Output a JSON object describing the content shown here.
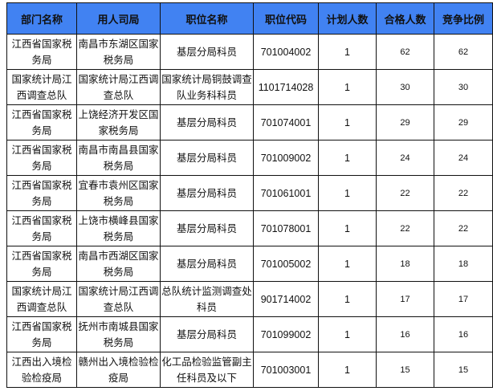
{
  "header_color": "#4182f2",
  "columns": [
    "部门名称",
    "用人司局",
    "职位名称",
    "职位代码",
    "计划人数",
    "合格人数",
    "竞争比例"
  ],
  "rows": [
    [
      "江西省国家税务局",
      "南昌市东湖区国家税务局",
      "基层分局科员",
      "701004002",
      "1",
      "62",
      "62"
    ],
    [
      "国家统计局江西调查总队",
      "国家统计局江西调查总队",
      "国家统计局铜鼓调查队业务科科员",
      "1101714028",
      "1",
      "30",
      "30"
    ],
    [
      "江西省国家税务局",
      "上饶经济开发区国家税务局",
      "基层分局科员",
      "701074001",
      "1",
      "29",
      "29"
    ],
    [
      "江西省国家税务局",
      "南昌市南昌县国家税务局",
      "基层分局科员",
      "701009002",
      "1",
      "24",
      "24"
    ],
    [
      "江西省国家税务局",
      "宜春市袁州区国家税务局",
      "基层分局科员",
      "701061001",
      "1",
      "22",
      "22"
    ],
    [
      "江西省国家税务局",
      "上饶市横峰县国家税务局",
      "基层分局科员",
      "701078001",
      "1",
      "22",
      "22"
    ],
    [
      "江西省国家税务局",
      "南昌市西湖区国家税务局",
      "基层分局科员",
      "701005002",
      "1",
      "18",
      "18"
    ],
    [
      "国家统计局江西调查总队",
      "国家统计局江西调查总队",
      "总队统计监测调查处科员",
      "901714002",
      "1",
      "17",
      "17"
    ],
    [
      "江西省国家税务局",
      "抚州市南城县国家税务局",
      "基层分局科员",
      "701099002",
      "1",
      "16",
      "16"
    ],
    [
      "江西出入境检验检疫局",
      "赣州出入境检验检疫局",
      "化工品检验监管副主任科员及以下",
      "701003001",
      "1",
      "15",
      "15"
    ]
  ]
}
